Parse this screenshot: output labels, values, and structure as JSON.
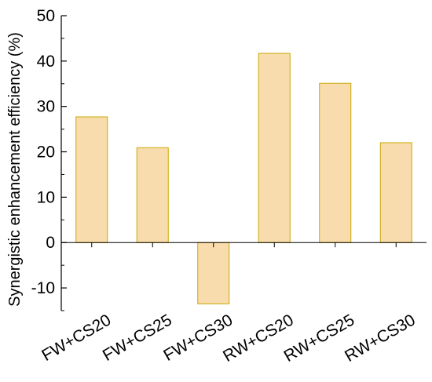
{
  "chart_data": {
    "type": "bar",
    "title": "",
    "xlabel": "",
    "ylabel": "Synergistic enhancement efficiency (%)",
    "categories": [
      "FW+CS20",
      "FW+CS25",
      "FW+CS30",
      "RW+CS20",
      "RW+CS25",
      "RW+CS30"
    ],
    "values": [
      27.7,
      20.9,
      -13.5,
      41.7,
      35.1,
      22.0
    ],
    "ylim": [
      -15,
      50
    ],
    "yticks": [
      -10,
      0,
      10,
      20,
      30,
      40,
      50
    ],
    "ytick_labels": [
      "-10",
      "0",
      "10",
      "20",
      "30",
      "40",
      "50"
    ],
    "grid": false,
    "legend": "none",
    "colors": {
      "bar_fill": "#f9dcae",
      "bar_stroke": "#c9a800",
      "axis": "#000000"
    }
  }
}
